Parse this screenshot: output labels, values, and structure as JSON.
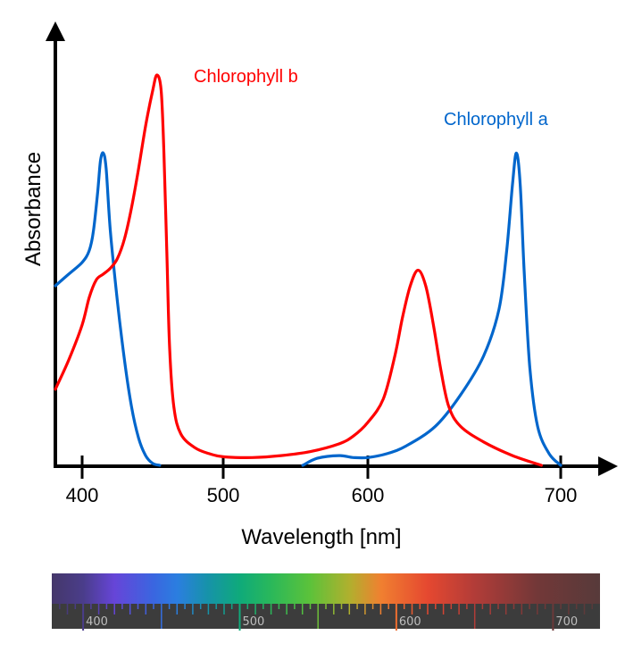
{
  "chart_data": {
    "type": "line",
    "title": "",
    "xlabel": "Wavelength [nm]",
    "ylabel": "Absorbance",
    "x_ticks": [
      400,
      500,
      600,
      700
    ],
    "x_tick_labels": [
      "400",
      "500",
      "600",
      "700"
    ],
    "xlim": [
      380,
      720
    ],
    "ylim": [
      0,
      1
    ],
    "y_ticks": [],
    "grid": false,
    "legend": "inline labels near peaks",
    "series": [
      {
        "name": "Chlorophyll b",
        "label": "Chlorophyll b",
        "color": "#ff0000",
        "label_near": "top of 453 nm peak",
        "points": [
          [
            380,
            0.195
          ],
          [
            390,
            0.27
          ],
          [
            400,
            0.36
          ],
          [
            405,
            0.43
          ],
          [
            410,
            0.475
          ],
          [
            415,
            0.49
          ],
          [
            420,
            0.505
          ],
          [
            425,
            0.53
          ],
          [
            430,
            0.58
          ],
          [
            435,
            0.66
          ],
          [
            440,
            0.76
          ],
          [
            445,
            0.87
          ],
          [
            450,
            0.96
          ],
          [
            453,
            1.0
          ],
          [
            456,
            0.96
          ],
          [
            458,
            0.8
          ],
          [
            460,
            0.55
          ],
          [
            462,
            0.3
          ],
          [
            465,
            0.15
          ],
          [
            470,
            0.08
          ],
          [
            480,
            0.045
          ],
          [
            490,
            0.03
          ],
          [
            500,
            0.022
          ],
          [
            520,
            0.02
          ],
          [
            540,
            0.025
          ],
          [
            560,
            0.035
          ],
          [
            580,
            0.055
          ],
          [
            590,
            0.075
          ],
          [
            600,
            0.11
          ],
          [
            608,
            0.17
          ],
          [
            614,
            0.28
          ],
          [
            618,
            0.38
          ],
          [
            622,
            0.46
          ],
          [
            626,
            0.5
          ],
          [
            630,
            0.46
          ],
          [
            634,
            0.36
          ],
          [
            638,
            0.24
          ],
          [
            642,
            0.15
          ],
          [
            648,
            0.1
          ],
          [
            660,
            0.06
          ],
          [
            675,
            0.025
          ],
          [
            690,
            0.0
          ]
        ]
      },
      {
        "name": "Chlorophyll a",
        "label": "Chlorophyll a",
        "color": "#0066cc",
        "label_near": "above 680 nm peak",
        "points": [
          [
            380,
            0.46
          ],
          [
            390,
            0.49
          ],
          [
            400,
            0.52
          ],
          [
            405,
            0.55
          ],
          [
            408,
            0.6
          ],
          [
            411,
            0.7
          ],
          [
            413,
            0.78
          ],
          [
            415,
            0.8
          ],
          [
            417,
            0.76
          ],
          [
            420,
            0.6
          ],
          [
            425,
            0.42
          ],
          [
            430,
            0.27
          ],
          [
            435,
            0.15
          ],
          [
            440,
            0.07
          ],
          [
            445,
            0.025
          ],
          [
            450,
            0.005
          ],
          [
            455,
            0.0
          ],
          [
            555,
            0.0
          ],
          [
            565,
            0.018
          ],
          [
            580,
            0.025
          ],
          [
            590,
            0.02
          ],
          [
            600,
            0.02
          ],
          [
            610,
            0.03
          ],
          [
            620,
            0.05
          ],
          [
            635,
            0.1
          ],
          [
            648,
            0.18
          ],
          [
            660,
            0.28
          ],
          [
            668,
            0.4
          ],
          [
            672,
            0.55
          ],
          [
            675,
            0.72
          ],
          [
            677,
            0.8
          ],
          [
            679,
            0.72
          ],
          [
            681,
            0.5
          ],
          [
            684,
            0.25
          ],
          [
            688,
            0.1
          ],
          [
            694,
            0.03
          ],
          [
            700,
            0.0
          ]
        ]
      }
    ]
  },
  "spectrum_bar": {
    "labels": [
      "400",
      "500",
      "600",
      "700"
    ],
    "label_values": [
      400,
      500,
      600,
      700
    ],
    "range": [
      380,
      730
    ],
    "colors": [
      {
        "nm": 380,
        "color": "#45376a"
      },
      {
        "nm": 400,
        "color": "#4a3d8a"
      },
      {
        "nm": 420,
        "color": "#6645d8"
      },
      {
        "nm": 445,
        "color": "#3a66e0"
      },
      {
        "nm": 460,
        "color": "#2b7ee0"
      },
      {
        "nm": 480,
        "color": "#1693a8"
      },
      {
        "nm": 500,
        "color": "#0faa7a"
      },
      {
        "nm": 520,
        "color": "#2ab85a"
      },
      {
        "nm": 545,
        "color": "#5cc23a"
      },
      {
        "nm": 570,
        "color": "#b0b02e"
      },
      {
        "nm": 590,
        "color": "#f08030"
      },
      {
        "nm": 620,
        "color": "#e54830"
      },
      {
        "nm": 650,
        "color": "#b23c38"
      },
      {
        "nm": 690,
        "color": "#723838"
      },
      {
        "nm": 730,
        "color": "#573a3a"
      }
    ],
    "ruler_color": "#3c3c3c"
  }
}
